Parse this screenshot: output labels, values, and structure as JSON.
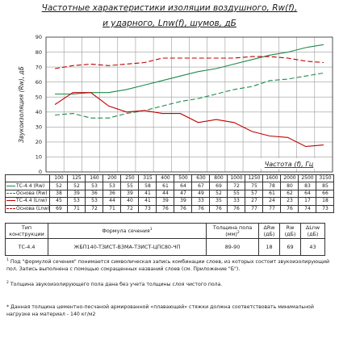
{
  "title": {
    "line1": "Частотные характеристики изоляции воздушного, Rw(f),",
    "line2": "и ударного, Lnw(f), шумов, дБ"
  },
  "chart_data": {
    "type": "line",
    "ylabel": "Звукоизоляция (Rw), дБ",
    "xlabel": "Частота (f), Гц",
    "ylim": [
      0,
      90
    ],
    "yticks": [
      0,
      10,
      20,
      30,
      40,
      50,
      60,
      70,
      80,
      90
    ],
    "grid": true,
    "categories": [
      "100",
      "125",
      "160",
      "200",
      "250",
      "315",
      "400",
      "500",
      "630",
      "800",
      "1000",
      "1250",
      "1600",
      "2000",
      "2500",
      "3150"
    ],
    "series": [
      {
        "name": "ТС-4.4 (Rw)",
        "color": "#1e8a4c",
        "dash": "none",
        "values": [
          52,
          52,
          53,
          53,
          55,
          58,
          61,
          64,
          67,
          69,
          72,
          75,
          78,
          80,
          83,
          85
        ]
      },
      {
        "name": "Основа (Rw)",
        "color": "#1e8a4c",
        "dash": "6,3",
        "values": [
          38,
          39,
          36,
          36,
          39,
          41,
          44,
          47,
          49,
          52,
          55,
          57,
          61,
          62,
          64,
          66
        ]
      },
      {
        "name": "ТС-4.4 (Lnw)",
        "color": "#c00000",
        "dash": "none",
        "values": [
          45,
          53,
          53,
          44,
          40,
          41,
          39,
          39,
          33,
          35,
          33,
          27,
          24,
          23,
          17,
          18
        ]
      },
      {
        "name": "Основа (Lnw)",
        "color": "#c00000",
        "dash": "6,3",
        "values": [
          69,
          71,
          72,
          71,
          72,
          73,
          76,
          76,
          76,
          76,
          76,
          77,
          77,
          76,
          74,
          73
        ]
      }
    ]
  },
  "spec_table": {
    "headers": [
      "Тип конструкции",
      "Формула сечения",
      "Толщина пола (мм)",
      "ΔRw (дБ)",
      "Rw (дБ)",
      "ΔLnw (дБ)"
    ],
    "header_superscripts": {
      "formula": "1",
      "thickness": "2"
    },
    "row": [
      "ТС-4.4",
      "ЖБП140-ТЗИСТ-ВЗМА-ТЗИСТ-ЦПС80-ЧП",
      "89-90",
      "18",
      "69",
      "43"
    ]
  },
  "notes": {
    "n1": "Под \"формулой сечения\" понимается символическая запись комбинации слоев, из которых состоит звукоизолирующий пол. Запись выполнена с помощью сокращенных названий слоев (см. Приложение \"Б\").",
    "n1_mark": "1",
    "n2": "Толщина звукоизолирующего пола дана без учета толщины слоя чистого пола.",
    "n2_mark": "2",
    "n3": "* Данная толщина цементно-песчаной армированной «плавающей» стяжки должна соответствовать минимальной нагрузке на материал - 140 кг/м2"
  }
}
